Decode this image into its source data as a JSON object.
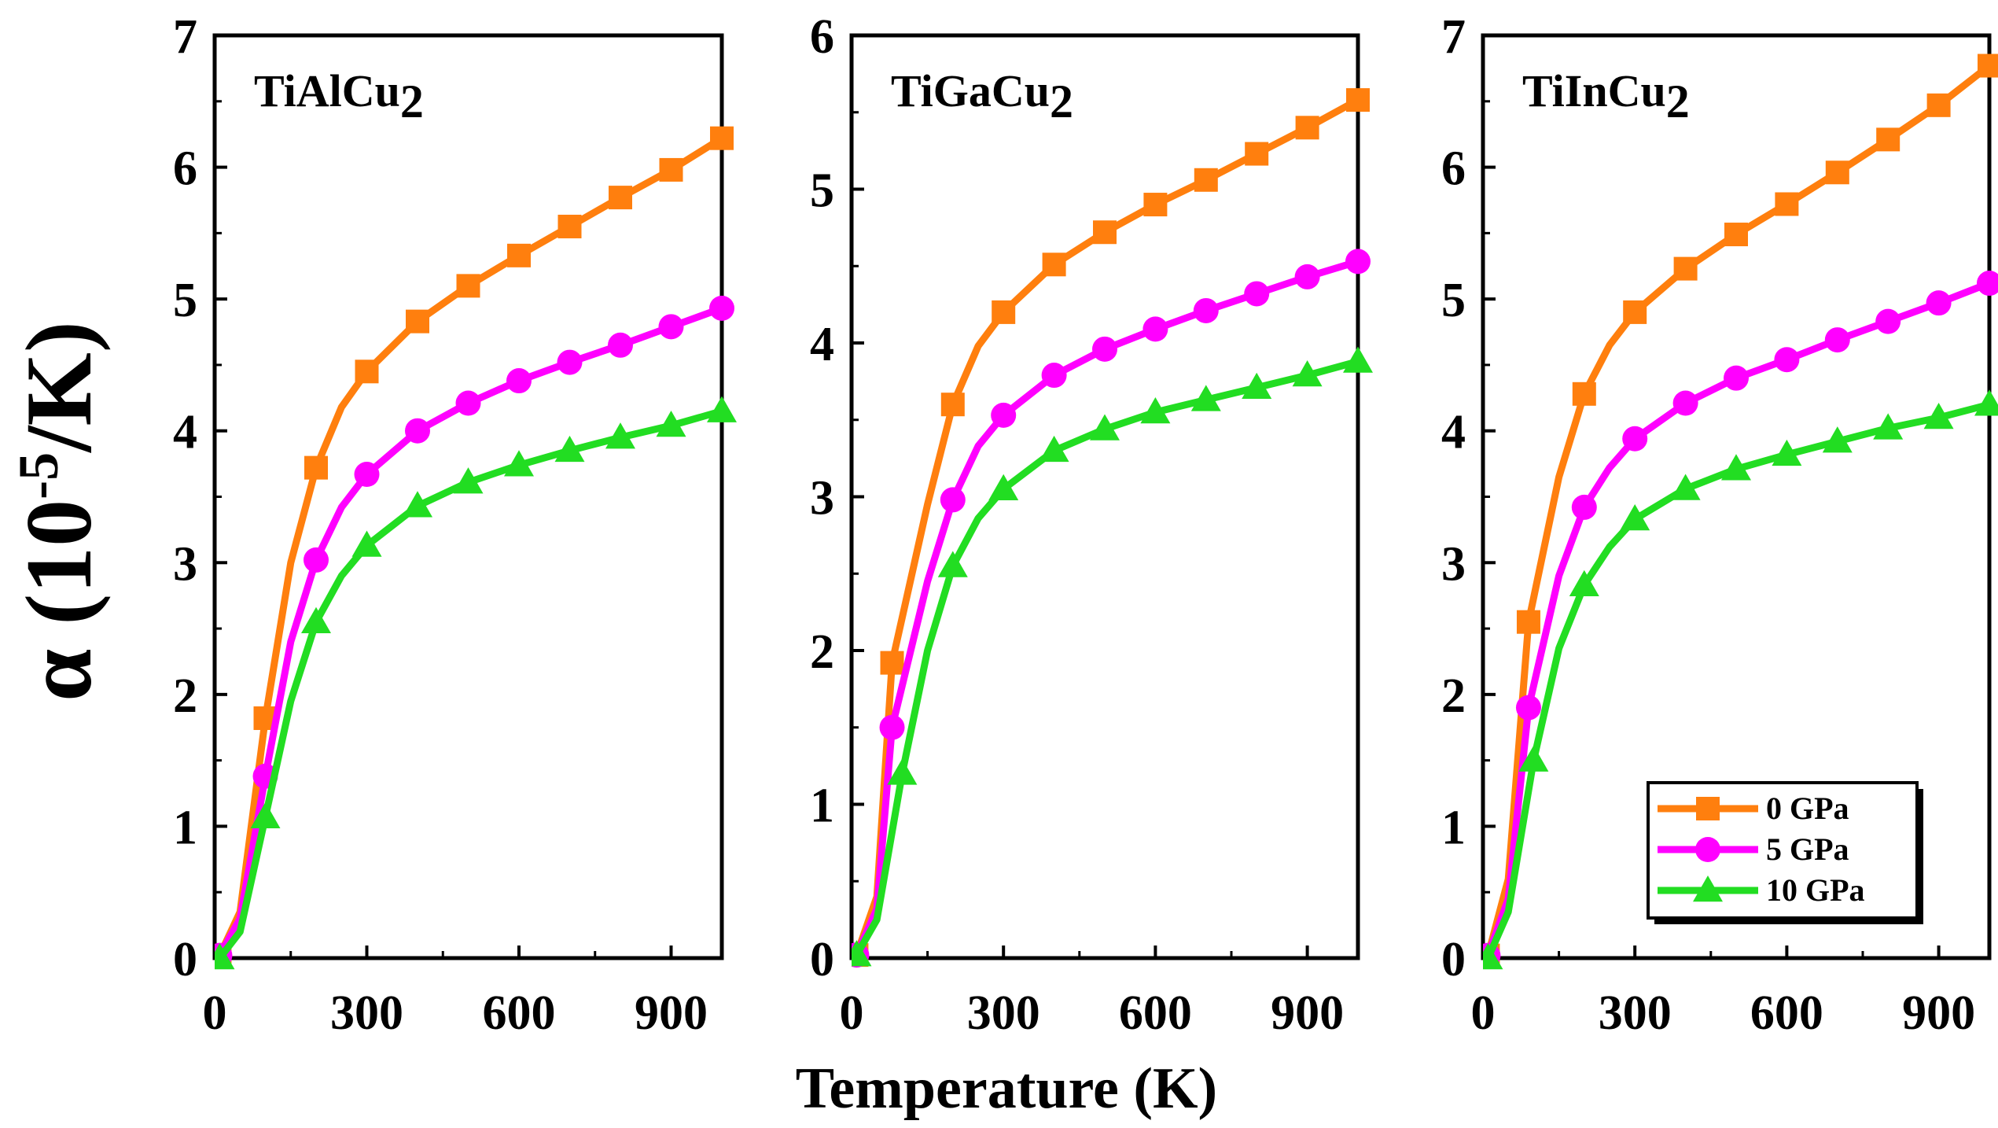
{
  "figure": {
    "y_axis_label": "α (10",
    "y_axis_exp": "-5",
    "y_axis_unit": "/K)",
    "x_axis_label": "Temperature (K)"
  },
  "legend": [
    {
      "label": "0 GPa",
      "color": "#FF7F0E",
      "marker": "square"
    },
    {
      "label": "5 GPa",
      "color": "#FF00FF",
      "marker": "circle"
    },
    {
      "label": "10 GPa",
      "color": "#22DD22",
      "marker": "triangle"
    }
  ],
  "chart_data": [
    {
      "type": "line",
      "title": "TiAlCu2",
      "title_base": "TiAlCu",
      "title_sub": "2",
      "xlabel": "Temperature (K)",
      "ylabel": "α (10^-5/K)",
      "xlim": [
        0,
        1000
      ],
      "ylim": [
        0,
        7
      ],
      "xticks": [
        0,
        300,
        600,
        900
      ],
      "yticks": [
        0,
        1,
        2,
        3,
        4,
        5,
        6,
        7
      ],
      "series": [
        {
          "name": "0 GPa",
          "marker": "square",
          "color": "#FF7F0E",
          "curve": [
            [
              0,
              0
            ],
            [
              10,
              0.02
            ],
            [
              50,
              0.35
            ],
            [
              100,
              1.82
            ],
            [
              150,
              3.0
            ],
            [
              200,
              3.72
            ],
            [
              250,
              4.18
            ],
            [
              300,
              4.45
            ],
            [
              400,
              4.83
            ],
            [
              500,
              5.1
            ],
            [
              600,
              5.33
            ],
            [
              700,
              5.55
            ],
            [
              800,
              5.77
            ],
            [
              900,
              5.98
            ],
            [
              1000,
              6.22
            ]
          ],
          "points": [
            [
              10,
              0.02
            ],
            [
              100,
              1.82
            ],
            [
              200,
              3.72
            ],
            [
              300,
              4.45
            ],
            [
              400,
              4.83
            ],
            [
              500,
              5.1
            ],
            [
              600,
              5.33
            ],
            [
              700,
              5.55
            ],
            [
              800,
              5.77
            ],
            [
              900,
              5.98
            ],
            [
              1000,
              6.22
            ]
          ]
        },
        {
          "name": "5 GPa",
          "marker": "circle",
          "color": "#FF00FF",
          "curve": [
            [
              0,
              0
            ],
            [
              10,
              0.02
            ],
            [
              50,
              0.3
            ],
            [
              100,
              1.38
            ],
            [
              150,
              2.4
            ],
            [
              200,
              3.02
            ],
            [
              250,
              3.42
            ],
            [
              300,
              3.67
            ],
            [
              400,
              4.0
            ],
            [
              500,
              4.21
            ],
            [
              600,
              4.38
            ],
            [
              700,
              4.52
            ],
            [
              800,
              4.65
            ],
            [
              900,
              4.79
            ],
            [
              1000,
              4.93
            ]
          ],
          "points": [
            [
              10,
              0.02
            ],
            [
              100,
              1.38
            ],
            [
              200,
              3.02
            ],
            [
              300,
              3.67
            ],
            [
              400,
              4.0
            ],
            [
              500,
              4.21
            ],
            [
              600,
              4.38
            ],
            [
              700,
              4.52
            ],
            [
              800,
              4.65
            ],
            [
              900,
              4.79
            ],
            [
              1000,
              4.93
            ]
          ]
        },
        {
          "name": "10 GPa",
          "marker": "triangle",
          "color": "#22DD22",
          "curve": [
            [
              0,
              0
            ],
            [
              10,
              0.0
            ],
            [
              50,
              0.2
            ],
            [
              100,
              1.07
            ],
            [
              150,
              1.95
            ],
            [
              200,
              2.55
            ],
            [
              250,
              2.9
            ],
            [
              300,
              3.13
            ],
            [
              400,
              3.43
            ],
            [
              500,
              3.61
            ],
            [
              600,
              3.74
            ],
            [
              700,
              3.85
            ],
            [
              800,
              3.95
            ],
            [
              900,
              4.04
            ],
            [
              1000,
              4.15
            ]
          ],
          "points": [
            [
              10,
              0.0
            ],
            [
              100,
              1.07
            ],
            [
              200,
              2.55
            ],
            [
              300,
              3.13
            ],
            [
              400,
              3.43
            ],
            [
              500,
              3.61
            ],
            [
              600,
              3.74
            ],
            [
              700,
              3.85
            ],
            [
              800,
              3.95
            ],
            [
              900,
              4.04
            ],
            [
              1000,
              4.15
            ]
          ]
        }
      ]
    },
    {
      "type": "line",
      "title": "TiGaCu2",
      "title_base": "TiGaCu",
      "title_sub": "2",
      "xlabel": "Temperature (K)",
      "ylabel": "α (10^-5/K)",
      "xlim": [
        0,
        1000
      ],
      "ylim": [
        0,
        6
      ],
      "xticks": [
        0,
        300,
        600,
        900
      ],
      "yticks": [
        0,
        1,
        2,
        3,
        4,
        5,
        6
      ],
      "series": [
        {
          "name": "0 GPa",
          "marker": "square",
          "color": "#FF7F0E",
          "curve": [
            [
              0,
              0
            ],
            [
              10,
              0.02
            ],
            [
              50,
              0.4
            ],
            [
              80,
              1.92
            ],
            [
              150,
              2.95
            ],
            [
              200,
              3.6
            ],
            [
              250,
              3.98
            ],
            [
              300,
              4.2
            ],
            [
              400,
              4.51
            ],
            [
              500,
              4.72
            ],
            [
              600,
              4.9
            ],
            [
              700,
              5.06
            ],
            [
              800,
              5.23
            ],
            [
              900,
              5.4
            ],
            [
              1000,
              5.58
            ]
          ],
          "points": [
            [
              10,
              0.02
            ],
            [
              80,
              1.92
            ],
            [
              200,
              3.6
            ],
            [
              300,
              4.2
            ],
            [
              400,
              4.51
            ],
            [
              500,
              4.72
            ],
            [
              600,
              4.9
            ],
            [
              700,
              5.06
            ],
            [
              800,
              5.23
            ],
            [
              900,
              5.4
            ],
            [
              1000,
              5.58
            ]
          ]
        },
        {
          "name": "5 GPa",
          "marker": "circle",
          "color": "#FF00FF",
          "curve": [
            [
              0,
              0
            ],
            [
              10,
              0.02
            ],
            [
              50,
              0.32
            ],
            [
              80,
              1.5
            ],
            [
              150,
              2.45
            ],
            [
              200,
              2.98
            ],
            [
              250,
              3.33
            ],
            [
              300,
              3.53
            ],
            [
              400,
              3.79
            ],
            [
              500,
              3.96
            ],
            [
              600,
              4.09
            ],
            [
              700,
              4.21
            ],
            [
              800,
              4.32
            ],
            [
              900,
              4.43
            ],
            [
              1000,
              4.53
            ]
          ],
          "points": [
            [
              10,
              0.02
            ],
            [
              80,
              1.5
            ],
            [
              200,
              2.98
            ],
            [
              300,
              3.53
            ],
            [
              400,
              3.79
            ],
            [
              500,
              3.96
            ],
            [
              600,
              4.09
            ],
            [
              700,
              4.21
            ],
            [
              800,
              4.32
            ],
            [
              900,
              4.43
            ],
            [
              1000,
              4.53
            ]
          ]
        },
        {
          "name": "10 GPa",
          "marker": "triangle",
          "color": "#22DD22",
          "curve": [
            [
              0,
              0
            ],
            [
              10,
              0.02
            ],
            [
              50,
              0.25
            ],
            [
              100,
              1.2
            ],
            [
              150,
              2.0
            ],
            [
              200,
              2.55
            ],
            [
              250,
              2.86
            ],
            [
              300,
              3.05
            ],
            [
              400,
              3.3
            ],
            [
              500,
              3.44
            ],
            [
              600,
              3.55
            ],
            [
              700,
              3.63
            ],
            [
              800,
              3.71
            ],
            [
              900,
              3.79
            ],
            [
              1000,
              3.88
            ]
          ],
          "points": [
            [
              10,
              0.02
            ],
            [
              100,
              1.2
            ],
            [
              200,
              2.55
            ],
            [
              300,
              3.05
            ],
            [
              400,
              3.3
            ],
            [
              500,
              3.44
            ],
            [
              600,
              3.55
            ],
            [
              700,
              3.63
            ],
            [
              800,
              3.71
            ],
            [
              900,
              3.79
            ],
            [
              1000,
              3.88
            ]
          ]
        }
      ]
    },
    {
      "type": "line",
      "title": "TiInCu2",
      "title_base": "TiInCu",
      "title_sub": "2",
      "xlabel": "Temperature (K)",
      "ylabel": "α (10^-5/K)",
      "xlim": [
        0,
        1000
      ],
      "ylim": [
        0,
        7
      ],
      "xticks": [
        0,
        300,
        600,
        900
      ],
      "yticks": [
        0,
        1,
        2,
        3,
        4,
        5,
        6,
        7
      ],
      "series": [
        {
          "name": "0 GPa",
          "marker": "square",
          "color": "#FF7F0E",
          "curve": [
            [
              0,
              0
            ],
            [
              10,
              0.02
            ],
            [
              50,
              0.6
            ],
            [
              90,
              2.55
            ],
            [
              150,
              3.65
            ],
            [
              200,
              4.28
            ],
            [
              250,
              4.65
            ],
            [
              300,
              4.9
            ],
            [
              400,
              5.23
            ],
            [
              500,
              5.49
            ],
            [
              600,
              5.72
            ],
            [
              700,
              5.96
            ],
            [
              800,
              6.21
            ],
            [
              900,
              6.47
            ],
            [
              1000,
              6.77
            ]
          ],
          "points": [
            [
              10,
              0.02
            ],
            [
              90,
              2.55
            ],
            [
              200,
              4.28
            ],
            [
              300,
              4.9
            ],
            [
              400,
              5.23
            ],
            [
              500,
              5.49
            ],
            [
              600,
              5.72
            ],
            [
              700,
              5.96
            ],
            [
              800,
              6.21
            ],
            [
              900,
              6.47
            ],
            [
              1000,
              6.77
            ]
          ]
        },
        {
          "name": "5 GPa",
          "marker": "circle",
          "color": "#FF00FF",
          "curve": [
            [
              0,
              0
            ],
            [
              10,
              0.02
            ],
            [
              50,
              0.45
            ],
            [
              90,
              1.9
            ],
            [
              150,
              2.9
            ],
            [
              200,
              3.42
            ],
            [
              250,
              3.72
            ],
            [
              300,
              3.94
            ],
            [
              400,
              4.21
            ],
            [
              500,
              4.4
            ],
            [
              600,
              4.54
            ],
            [
              700,
              4.69
            ],
            [
              800,
              4.83
            ],
            [
              900,
              4.97
            ],
            [
              1000,
              5.12
            ]
          ],
          "points": [
            [
              10,
              0.02
            ],
            [
              90,
              1.9
            ],
            [
              200,
              3.42
            ],
            [
              300,
              3.94
            ],
            [
              400,
              4.21
            ],
            [
              500,
              4.4
            ],
            [
              600,
              4.54
            ],
            [
              700,
              4.69
            ],
            [
              800,
              4.83
            ],
            [
              900,
              4.97
            ],
            [
              1000,
              5.12
            ]
          ]
        },
        {
          "name": "10 GPa",
          "marker": "triangle",
          "color": "#22DD22",
          "curve": [
            [
              0,
              0
            ],
            [
              10,
              0.0
            ],
            [
              50,
              0.35
            ],
            [
              100,
              1.5
            ],
            [
              150,
              2.35
            ],
            [
              200,
              2.83
            ],
            [
              250,
              3.12
            ],
            [
              300,
              3.33
            ],
            [
              400,
              3.56
            ],
            [
              500,
              3.71
            ],
            [
              600,
              3.82
            ],
            [
              700,
              3.92
            ],
            [
              800,
              4.02
            ],
            [
              900,
              4.1
            ],
            [
              1000,
              4.2
            ]
          ],
          "points": [
            [
              10,
              0.0
            ],
            [
              100,
              1.5
            ],
            [
              200,
              2.83
            ],
            [
              300,
              3.33
            ],
            [
              400,
              3.56
            ],
            [
              500,
              3.71
            ],
            [
              600,
              3.82
            ],
            [
              700,
              3.92
            ],
            [
              800,
              4.02
            ],
            [
              900,
              4.1
            ],
            [
              1000,
              4.2
            ]
          ]
        }
      ]
    }
  ]
}
